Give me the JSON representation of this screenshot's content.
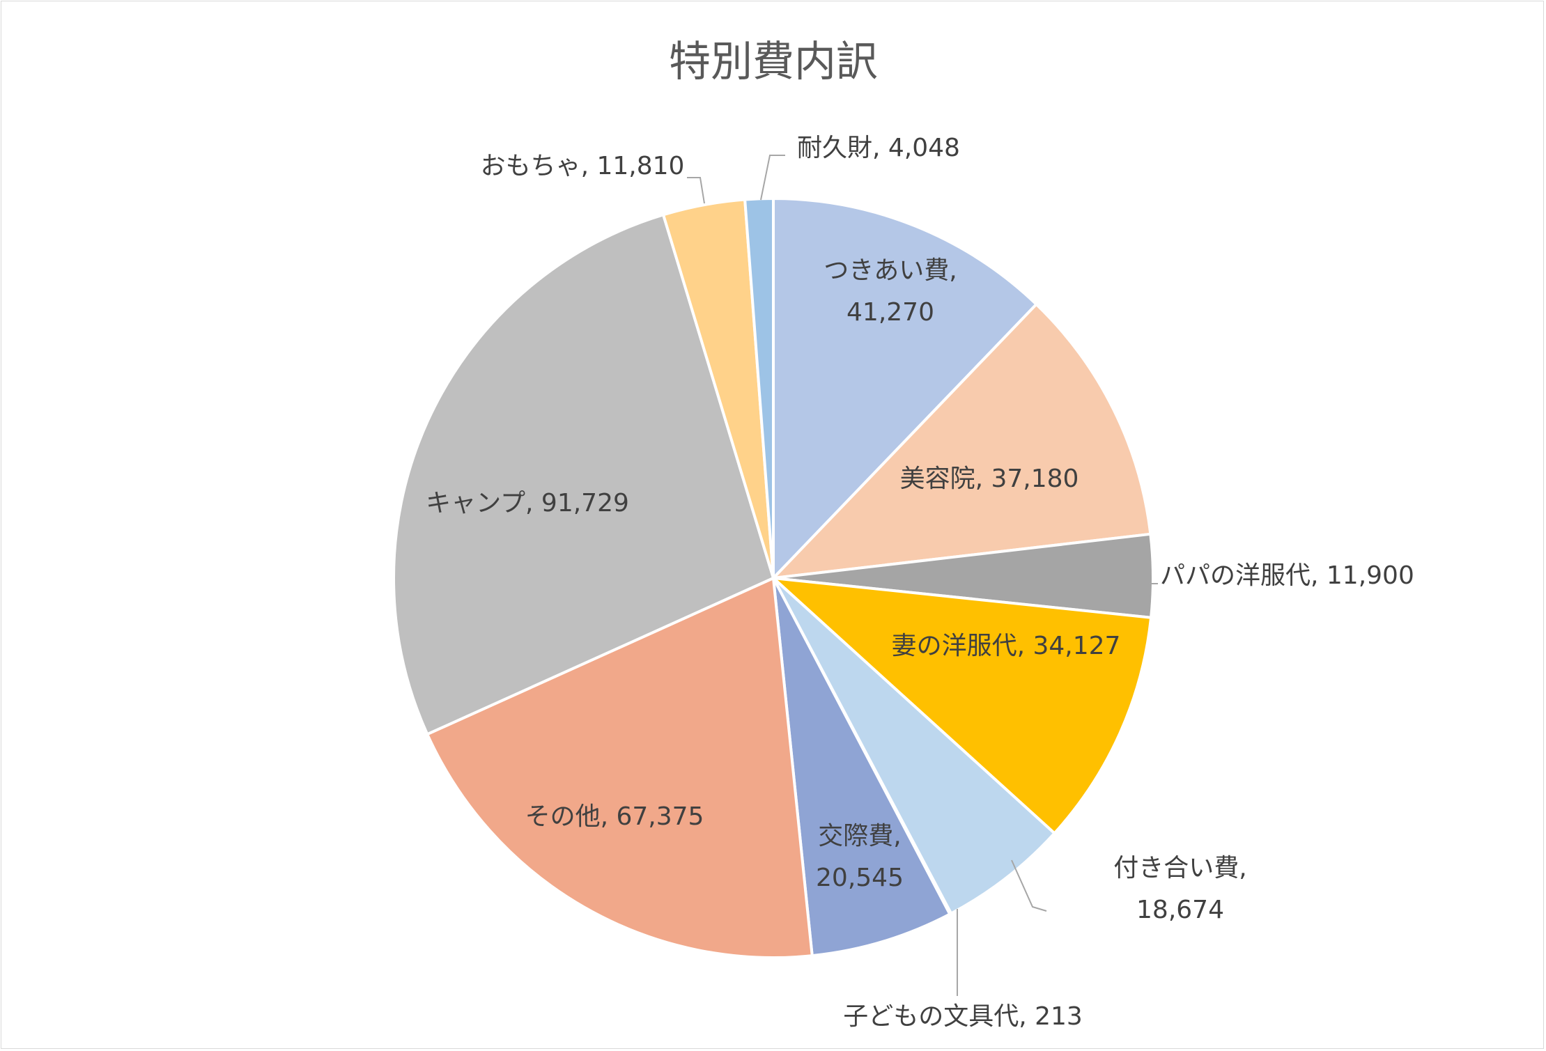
{
  "chart_data": {
    "type": "pie",
    "title": "特別費内訳",
    "start_angle_deg": 0,
    "direction": "clockwise",
    "slices": [
      {
        "name": "つきあい費",
        "value": 41270,
        "label_lines": [
          "つきあい費,",
          "41,270"
        ],
        "color": "#B4C7E7"
      },
      {
        "name": "美容院",
        "value": 37180,
        "label_lines": [
          "美容院, 37,180"
        ],
        "color": "#F8CBAD"
      },
      {
        "name": "パパの洋服代",
        "value": 11900,
        "label_lines": [
          "パパの洋服代, 11,900"
        ],
        "color": "#A5A5A5"
      },
      {
        "name": "妻の洋服代",
        "value": 34127,
        "label_lines": [
          "妻の洋服代, 34,127"
        ],
        "color": "#FFC000"
      },
      {
        "name": "付き合い費",
        "value": 18674,
        "label_lines": [
          "付き合い費,",
          "18,674"
        ],
        "color": "#BDD7EE"
      },
      {
        "name": "子どもの文具代",
        "value": 213,
        "label_lines": [
          "子どもの文具代, 213"
        ],
        "color": "#70AD47"
      },
      {
        "name": "交際費",
        "value": 20545,
        "label_lines": [
          "交際費,",
          "20,545"
        ],
        "color": "#8FA4D4"
      },
      {
        "name": "その他",
        "value": 67375,
        "label_lines": [
          "その他, 67,375"
        ],
        "color": "#F1A88A"
      },
      {
        "name": "キャンプ",
        "value": 91729,
        "label_lines": [
          "キャンプ, 91,729"
        ],
        "color": "#BFBFBF"
      },
      {
        "name": "おもちゃ",
        "value": 11810,
        "label_lines": [
          "おもちゃ, 11,810"
        ],
        "color": "#FFD28A"
      },
      {
        "name": "耐久財",
        "value": 4048,
        "label_lines": [
          "耐久財, 4,048"
        ],
        "color": "#9DC3E6"
      }
    ]
  }
}
